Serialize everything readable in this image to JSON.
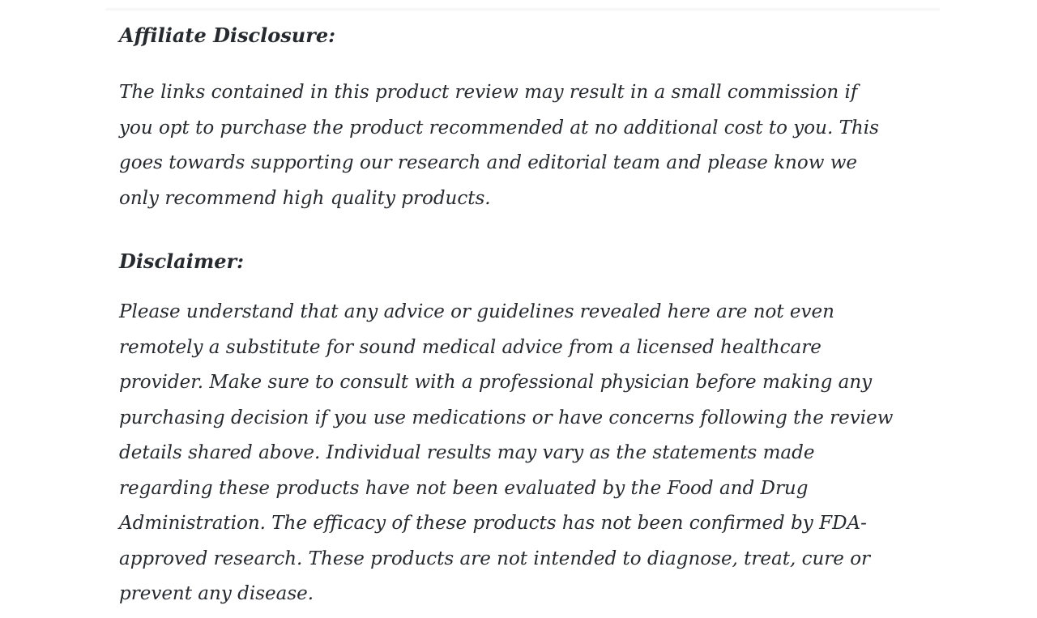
{
  "page": {
    "background_color": "#ffffff",
    "text_color": "#26292e",
    "hairline_color": "#f7f7f8"
  },
  "content": {
    "sections": [
      {
        "heading": "Affiliate Disclosure:",
        "lines": [
          "The links contained in this product review may result in a small commission if",
          "you opt to purchase the product recommended at no additional cost to you. This",
          "goes towards supporting our research and editorial team and please know we",
          "only recommend high quality products."
        ],
        "full_text": "The links contained in this product review may result in a small commission if you opt to purchase the product recommended at no additional cost to you. This goes towards supporting our research and editorial team and please know we only recommend high quality products."
      },
      {
        "heading": "Disclaimer:",
        "lines": [
          "Please understand that any advice or guidelines revealed here are not even",
          "remotely a substitute for sound medical advice from a licensed healthcare",
          "provider. Make sure to consult with a professional physician before making any",
          "purchasing decision if you use medications or have concerns following the review",
          "details shared above. Individual results may vary as the statements made",
          "regarding these products have not been evaluated by the Food and Drug",
          "Administration. The efficacy of these products has not been confirmed by FDA-",
          "approved research. These products are not intended to diagnose, treat, cure or",
          "prevent any disease."
        ],
        "full_text": "Please understand that any advice or guidelines revealed here are not even remotely a substitute for sound medical advice from a licensed healthcare provider. Make sure to consult with a professional physician before making any purchasing decision if you use medications or have concerns following the review details shared above. Individual results may vary as the statements made regarding these products have not been evaluated by the Food and Drug Administration. The efficacy of these products has not been confirmed by FDA-approved research. These products are not intended to diagnose, treat, cure or prevent any disease."
      }
    ]
  }
}
